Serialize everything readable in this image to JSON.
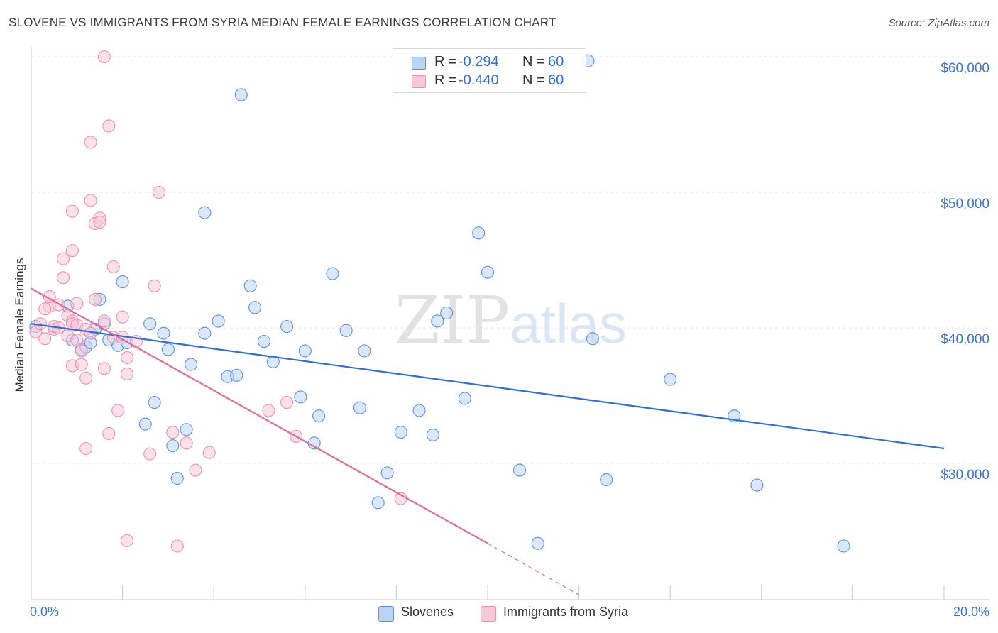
{
  "title": "SLOVENE VS IMMIGRANTS FROM SYRIA MEDIAN FEMALE EARNINGS CORRELATION CHART",
  "source": "Source: ZipAtlas.com",
  "watermark": {
    "zip": "ZIP",
    "atlas": "atlas"
  },
  "legend_top": {
    "rows": [
      {
        "r_label": "R =",
        "r_value": "-0.294",
        "n_label": "N =",
        "n_value": "60",
        "color": "#a8c6ef"
      },
      {
        "r_label": "R =",
        "r_value": "-0.440",
        "n_label": "N =",
        "n_value": "60",
        "color": "#f6b7cc"
      }
    ]
  },
  "legend_bottom": [
    {
      "label": "Slovenes",
      "color": "#a8c6ef"
    },
    {
      "label": "Immigrants from Syria",
      "color": "#f6b7cc"
    }
  ],
  "x_axis": {
    "min_label": "0.0%",
    "max_label": "20.0%"
  },
  "y_axis": {
    "label": "Median Female Earnings",
    "ticks": [
      "$60,000",
      "$50,000",
      "$40,000",
      "$30,000"
    ]
  },
  "chart_data": {
    "type": "scatter",
    "xlabel": "",
    "ylabel": "Median Female Earnings",
    "xlim": [
      0,
      20
    ],
    "ylim": [
      20000,
      61000
    ],
    "y_ticks": [
      30000,
      40000,
      50000,
      60000
    ],
    "grid": true,
    "series": [
      {
        "name": "Slovenes",
        "color": "#5b93e0",
        "fill": "#bcd4f4",
        "trend": {
          "x": [
            0,
            20
          ],
          "y": [
            40300,
            31100
          ],
          "color": "#2d6fd6"
        },
        "points": [
          [
            0.1,
            40100
          ],
          [
            0.8,
            41600
          ],
          [
            0.9,
            39100
          ],
          [
            1.1,
            38400
          ],
          [
            1.2,
            38600
          ],
          [
            1.4,
            39900
          ],
          [
            1.3,
            38900
          ],
          [
            1.5,
            42100
          ],
          [
            1.6,
            40300
          ],
          [
            1.7,
            39100
          ],
          [
            1.9,
            38700
          ],
          [
            2.1,
            38900
          ],
          [
            2.0,
            43400
          ],
          [
            2.6,
            40300
          ],
          [
            2.9,
            39600
          ],
          [
            3.0,
            38400
          ],
          [
            2.7,
            34500
          ],
          [
            2.5,
            32900
          ],
          [
            3.1,
            31300
          ],
          [
            3.2,
            28900
          ],
          [
            3.4,
            32500
          ],
          [
            3.5,
            37300
          ],
          [
            3.8,
            39600
          ],
          [
            3.8,
            48500
          ],
          [
            4.1,
            40500
          ],
          [
            4.3,
            36400
          ],
          [
            4.5,
            36500
          ],
          [
            4.6,
            57200
          ],
          [
            4.8,
            43100
          ],
          [
            4.9,
            41500
          ],
          [
            5.1,
            39000
          ],
          [
            5.3,
            37500
          ],
          [
            5.6,
            40100
          ],
          [
            5.9,
            34900
          ],
          [
            6.0,
            38300
          ],
          [
            6.2,
            31500
          ],
          [
            6.3,
            33500
          ],
          [
            6.6,
            44000
          ],
          [
            6.9,
            39800
          ],
          [
            7.2,
            34100
          ],
          [
            7.3,
            38300
          ],
          [
            7.6,
            27100
          ],
          [
            7.8,
            29300
          ],
          [
            8.1,
            32300
          ],
          [
            8.5,
            33900
          ],
          [
            8.9,
            40500
          ],
          [
            8.8,
            32100
          ],
          [
            9.1,
            41100
          ],
          [
            9.5,
            34800
          ],
          [
            9.8,
            47000
          ],
          [
            10.0,
            44100
          ],
          [
            10.7,
            29500
          ],
          [
            11.1,
            24100
          ],
          [
            12.2,
            59700
          ],
          [
            12.3,
            39200
          ],
          [
            12.6,
            28800
          ],
          [
            14.0,
            36200
          ],
          [
            15.4,
            33500
          ],
          [
            15.9,
            28400
          ],
          [
            17.8,
            23900
          ]
        ]
      },
      {
        "name": "Immigrants from Syria",
        "color": "#ec8fae",
        "fill": "#f9c9d8",
        "trend": {
          "x": [
            0,
            10
          ],
          "y": [
            42900,
            24100
          ],
          "dashed_to": {
            "x": 12,
            "y": 20300
          },
          "color": "#e26a95"
        },
        "points": [
          [
            0.1,
            39700
          ],
          [
            0.2,
            40300
          ],
          [
            0.3,
            39200
          ],
          [
            0.4,
            41600
          ],
          [
            0.4,
            42300
          ],
          [
            0.5,
            39900
          ],
          [
            0.5,
            40100
          ],
          [
            0.6,
            41700
          ],
          [
            0.6,
            40000
          ],
          [
            0.7,
            43700
          ],
          [
            0.7,
            45100
          ],
          [
            0.8,
            39400
          ],
          [
            0.8,
            40900
          ],
          [
            0.9,
            40500
          ],
          [
            0.9,
            40300
          ],
          [
            0.9,
            37200
          ],
          [
            1.0,
            40200
          ],
          [
            0.9,
            45700
          ],
          [
            0.9,
            48600
          ],
          [
            1.0,
            39100
          ],
          [
            1.1,
            38300
          ],
          [
            1.2,
            39900
          ],
          [
            1.1,
            37300
          ],
          [
            1.2,
            36300
          ],
          [
            1.2,
            31100
          ],
          [
            1.3,
            39600
          ],
          [
            1.3,
            53700
          ],
          [
            1.3,
            49400
          ],
          [
            1.4,
            42100
          ],
          [
            1.4,
            47700
          ],
          [
            1.5,
            48100
          ],
          [
            1.5,
            47800
          ],
          [
            1.6,
            40500
          ],
          [
            1.6,
            60000
          ],
          [
            1.6,
            37000
          ],
          [
            1.7,
            32200
          ],
          [
            1.7,
            54900
          ],
          [
            1.8,
            44500
          ],
          [
            1.8,
            39300
          ],
          [
            1.9,
            33900
          ],
          [
            2.0,
            40800
          ],
          [
            2.0,
            39300
          ],
          [
            2.1,
            24300
          ],
          [
            2.1,
            36600
          ],
          [
            2.1,
            37800
          ],
          [
            2.3,
            39000
          ],
          [
            2.6,
            30700
          ],
          [
            2.7,
            43100
          ],
          [
            2.8,
            50000
          ],
          [
            3.1,
            32300
          ],
          [
            3.2,
            23900
          ],
          [
            3.4,
            31500
          ],
          [
            3.6,
            29500
          ],
          [
            3.9,
            30800
          ],
          [
            5.2,
            33900
          ],
          [
            5.6,
            34500
          ],
          [
            5.8,
            32000
          ],
          [
            8.1,
            27400
          ],
          [
            1.0,
            41800
          ],
          [
            0.3,
            41400
          ]
        ]
      }
    ]
  }
}
